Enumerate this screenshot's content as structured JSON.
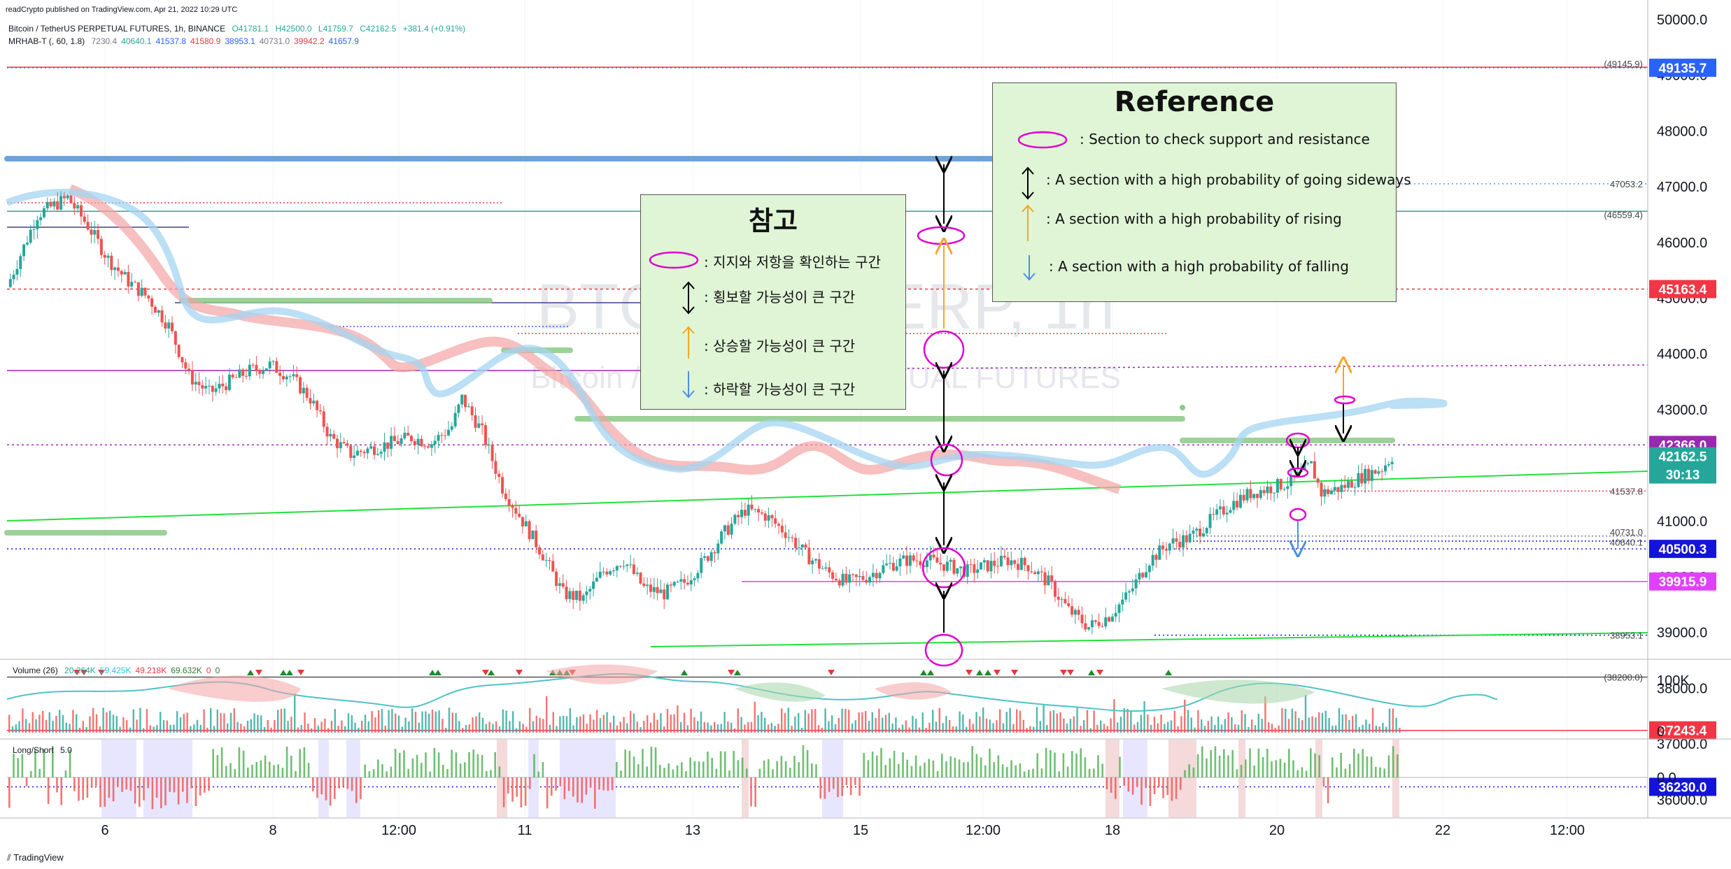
{
  "header": {
    "published": "readCrypto published on TradingView.com, Apr 21, 2022 10:29 UTC",
    "symbol_line": "Bitcoin / TetherUS PERPETUAL FUTURES, 1h, BINANCE",
    "ohlc": {
      "o": "O41781.1",
      "h": "H42500.0",
      "l": "L41759.7",
      "c": "C42162.5",
      "chg": "+381.4 (+0.91%)"
    },
    "indicator_name": "MRHAB-T (, 60, 1.8)",
    "indicator_values": [
      "7230.4",
      "40640.1",
      "41537.8",
      "41580.9",
      "38953.1",
      "40731.0",
      "39942.2",
      "41657.9"
    ],
    "indicator_colors": [
      "#787b86",
      "#26a69a",
      "#2962ff",
      "#f23645",
      "#2962ff",
      "#787b86",
      "#f23645",
      "#2962ff"
    ]
  },
  "watermark": {
    "ticker": "BTCUSDTPERP, 1h",
    "name": "Bitcoin / TetherUS PERPETUAL FUTURES"
  },
  "reference_box": {
    "title": "Reference",
    "items": [
      {
        "icon": "ellipse-icon",
        "text": ": Section to check support and resistance"
      },
      {
        "icon": "double-arrow-icon",
        "text": ": A section with a high probability of going sideways"
      },
      {
        "icon": "up-arrow-icon",
        "text": ": A section with a high probability of rising"
      },
      {
        "icon": "down-arrow-icon",
        "text": ": A section with a high probability of falling"
      }
    ]
  },
  "korean_box": {
    "title": "참고",
    "items": [
      {
        "icon": "ellipse-icon",
        "text": ": 지지와 저항을 확인하는 구간"
      },
      {
        "icon": "double-arrow-icon",
        "text": ": 횡보할 가능성이 큰 구간"
      },
      {
        "icon": "up-arrow-icon",
        "text": ": 상승할 가능성이 큰 구간"
      },
      {
        "icon": "down-arrow-icon",
        "text": ": 하락할 가능성이 큰 구간"
      }
    ]
  },
  "price_axis": {
    "ticks": [
      "50000.0",
      "49000.0",
      "48000.0",
      "47000.0",
      "46000.0",
      "45000.0",
      "44000.0",
      "43000.0",
      "42000.0",
      "41000.0",
      "40000.0",
      "39000.0",
      "38000.0",
      "37000.0",
      "36000.0"
    ]
  },
  "price_tags": [
    {
      "label": "49135.7",
      "color": "#2962ff"
    },
    {
      "label": "45163.4",
      "color": "#f23645"
    },
    {
      "label": "42366.0",
      "color": "#9c27b0"
    },
    {
      "label": "42162.5",
      "label2": "30:13",
      "color": "#26a69a"
    },
    {
      "label": "40500.3",
      "color": "#1414d9"
    },
    {
      "label": "39915.9",
      "color": "#e040fb"
    },
    {
      "label": "37243.4",
      "color": "#f23645"
    },
    {
      "label": "36230.0",
      "color": "#1414d9"
    }
  ],
  "level_labels": [
    "(49145.9)",
    "47053.2",
    "(46559.4)",
    "41537.8",
    "40731.0",
    "40640.1",
    "38953.1",
    "(38200.0)"
  ],
  "time_axis": {
    "ticks": [
      "6",
      "8",
      "12:00",
      "11",
      "13",
      "15",
      "12:00",
      "18",
      "20",
      "22",
      "12:00"
    ]
  },
  "volume_pane": {
    "title": "Volume (26)",
    "values": [
      "20.264K",
      "59.425K",
      "49.218K",
      "69.632K",
      "0",
      "0"
    ],
    "value_colors": [
      "#26a69a",
      "#26c6da",
      "#f23645",
      "#2e7d32",
      "#f23645",
      "#2e7d32"
    ],
    "axis": [
      "100K",
      "0"
    ]
  },
  "longshort_pane": {
    "title": "Long/Short",
    "param": "5.0",
    "axis": [
      "0.0"
    ]
  },
  "footer": "TradingView",
  "chart_data": {
    "type": "candlestick",
    "symbol": "BTCUSDTPERP",
    "interval": "1h",
    "ylim": [
      35800,
      50300
    ],
    "close_path": [
      [
        0,
        45200
      ],
      [
        3,
        46500
      ],
      [
        6,
        46800
      ],
      [
        8,
        46300
      ],
      [
        10,
        45700
      ],
      [
        12,
        45300
      ],
      [
        14,
        45000
      ],
      [
        16,
        44500
      ],
      [
        18,
        43600
      ],
      [
        20,
        43300
      ],
      [
        22,
        43500
      ],
      [
        24,
        43700
      ],
      [
        26,
        43800
      ],
      [
        28,
        43600
      ],
      [
        30,
        43200
      ],
      [
        32,
        42500
      ],
      [
        34,
        42200
      ],
      [
        36,
        42300
      ],
      [
        38,
        42400
      ],
      [
        40,
        42500
      ],
      [
        42,
        42400
      ],
      [
        44,
        42700
      ],
      [
        45,
        43200
      ],
      [
        47,
        42600
      ],
      [
        49,
        41600
      ],
      [
        51,
        41000
      ],
      [
        53,
        40400
      ],
      [
        55,
        39700
      ],
      [
        57,
        39600
      ],
      [
        59,
        40100
      ],
      [
        61,
        40300
      ],
      [
        63,
        39800
      ],
      [
        65,
        39700
      ],
      [
        67,
        39900
      ],
      [
        69,
        40300
      ],
      [
        71,
        40800
      ],
      [
        73,
        41200
      ],
      [
        75,
        41100
      ],
      [
        77,
        40800
      ],
      [
        79,
        40400
      ],
      [
        81,
        40100
      ],
      [
        83,
        39900
      ],
      [
        85,
        40000
      ],
      [
        87,
        40200
      ],
      [
        89,
        40300
      ],
      [
        91,
        40300
      ],
      [
        93,
        40200
      ],
      [
        95,
        40100
      ],
      [
        97,
        40200
      ],
      [
        99,
        40300
      ],
      [
        101,
        40200
      ],
      [
        103,
        39900
      ],
      [
        105,
        39400
      ],
      [
        107,
        39100
      ],
      [
        109,
        39300
      ],
      [
        111,
        39700
      ],
      [
        113,
        40300
      ],
      [
        115,
        40600
      ],
      [
        117,
        40700
      ],
      [
        119,
        41000
      ],
      [
        121,
        41300
      ],
      [
        123,
        41500
      ],
      [
        125,
        41600
      ],
      [
        127,
        41700
      ],
      [
        129,
        42000
      ],
      [
        130,
        41500
      ],
      [
        132,
        41600
      ],
      [
        134,
        41800
      ],
      [
        136,
        41950
      ],
      [
        137,
        42162.5
      ]
    ],
    "horizontal_levels": [
      49145.9,
      49135.7,
      47053.2,
      46559.4,
      45163.4,
      42366.0,
      41537.8,
      40731.0,
      40640.1,
      40500.3,
      39915.9,
      38953.1,
      38200.0,
      37243.4,
      36230.0
    ]
  }
}
